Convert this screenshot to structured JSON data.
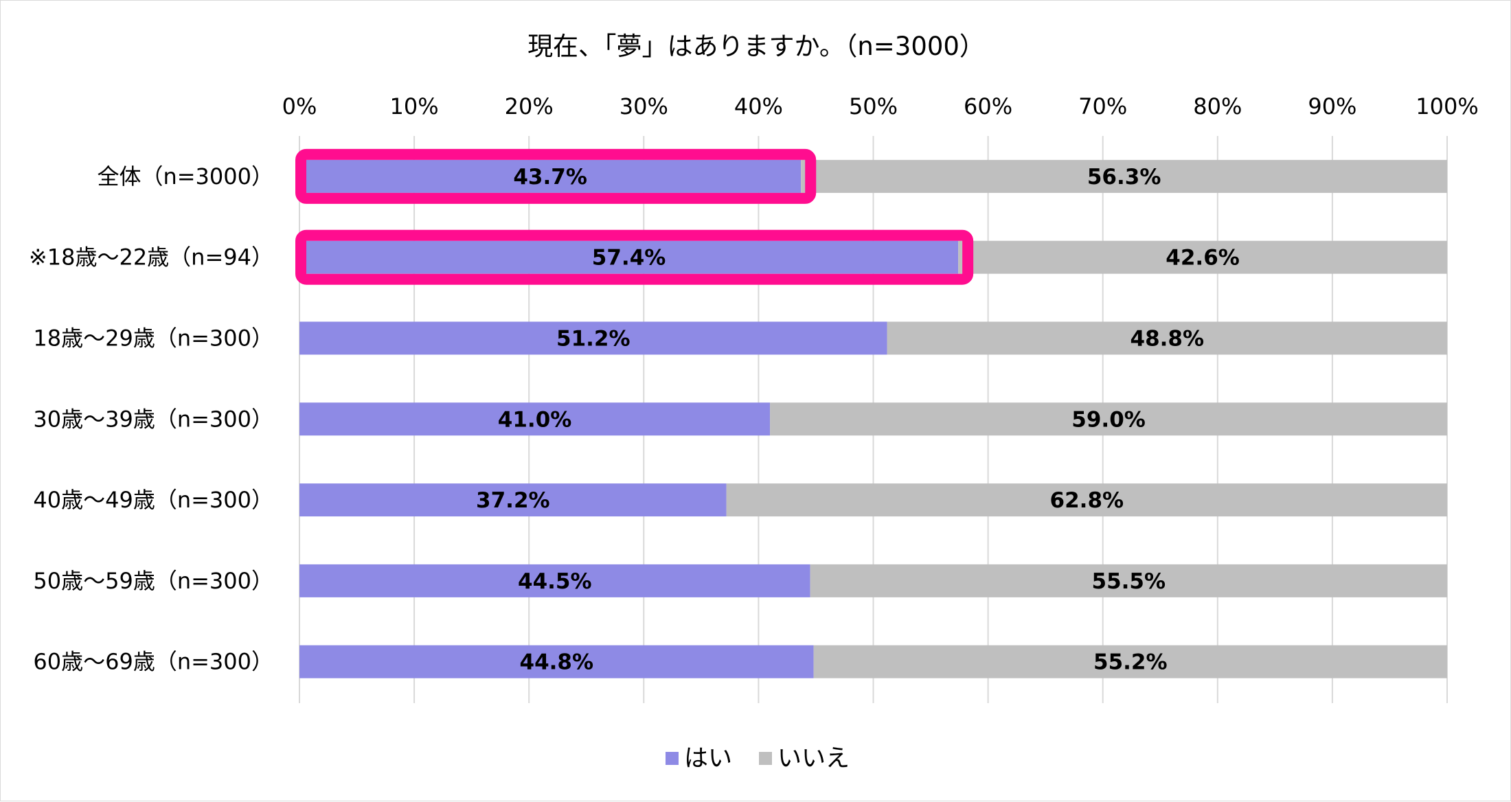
{
  "chart_data": {
    "type": "bar",
    "orientation": "horizontal",
    "stacked": true,
    "percent_stacked": true,
    "title": "現在、「夢」はありますか。（n=3000）",
    "categories": [
      "全体（n=3000）",
      "※18歳～22歳（n=94）",
      "18歳～29歳（n=300）",
      "30歳～39歳（n=300）",
      "40歳～49歳（n=300）",
      "50歳～59歳（n=300）",
      "60歳～69歳（n=300）"
    ],
    "series": [
      {
        "name": "はい",
        "color": "#8e8ae5",
        "values": [
          43.7,
          57.4,
          51.2,
          41.0,
          37.2,
          44.5,
          44.8
        ]
      },
      {
        "name": "いいえ",
        "color": "#bfbfbf",
        "values": [
          56.3,
          42.6,
          48.8,
          59.0,
          62.8,
          55.5,
          55.2
        ]
      }
    ],
    "data_labels": [
      [
        "43.7%",
        "57.4%",
        "51.2%",
        "41.0%",
        "37.2%",
        "44.5%",
        "44.8%"
      ],
      [
        "56.3%",
        "42.6%",
        "48.8%",
        "59.0%",
        "62.8%",
        "55.5%",
        "55.2%"
      ]
    ],
    "xlim": [
      0,
      100
    ],
    "xticks": [
      "0%",
      "10%",
      "20%",
      "30%",
      "40%",
      "50%",
      "60%",
      "70%",
      "80%",
      "90%",
      "100%"
    ],
    "axis_position": "top",
    "grid": true,
    "legend_position": "bottom",
    "highlighted_categories": [
      0,
      1
    ],
    "highlight_color": "#ff0d8f"
  }
}
